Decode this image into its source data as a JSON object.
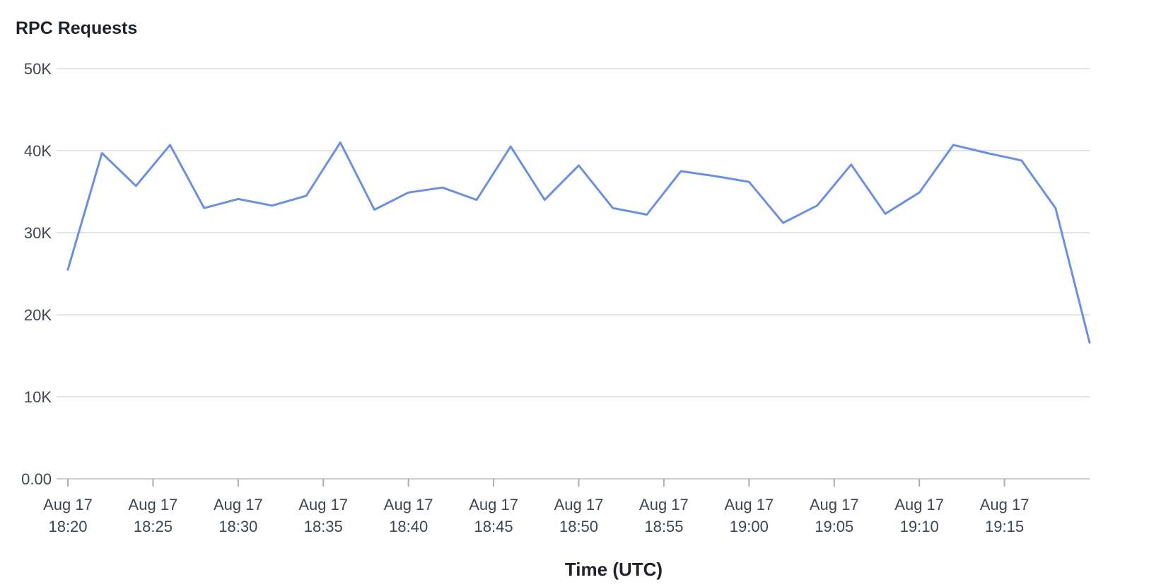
{
  "chart_data": {
    "type": "line",
    "title": "RPC Requests",
    "xlabel": "Time (UTC)",
    "ylabel": "",
    "ylim": [
      0,
      50000
    ],
    "yticks": [
      {
        "value": 0,
        "label": "0.00"
      },
      {
        "value": 10000,
        "label": "10K"
      },
      {
        "value": 20000,
        "label": "20K"
      },
      {
        "value": 30000,
        "label": "30K"
      },
      {
        "value": 40000,
        "label": "40K"
      },
      {
        "value": 50000,
        "label": "50K"
      }
    ],
    "xlim": [
      "Aug 17 18:20",
      "Aug 17 19:20"
    ],
    "xticks": [
      {
        "value": "Aug 17 18:20",
        "line1": "Aug 17",
        "line2": "18:20"
      },
      {
        "value": "Aug 17 18:25",
        "line1": "Aug 17",
        "line2": "18:25"
      },
      {
        "value": "Aug 17 18:30",
        "line1": "Aug 17",
        "line2": "18:30"
      },
      {
        "value": "Aug 17 18:35",
        "line1": "Aug 17",
        "line2": "18:35"
      },
      {
        "value": "Aug 17 18:40",
        "line1": "Aug 17",
        "line2": "18:40"
      },
      {
        "value": "Aug 17 18:45",
        "line1": "Aug 17",
        "line2": "18:45"
      },
      {
        "value": "Aug 17 18:50",
        "line1": "Aug 17",
        "line2": "18:50"
      },
      {
        "value": "Aug 17 18:55",
        "line1": "Aug 17",
        "line2": "18:55"
      },
      {
        "value": "Aug 17 19:00",
        "line1": "Aug 17",
        "line2": "19:00"
      },
      {
        "value": "Aug 17 19:05",
        "line1": "Aug 17",
        "line2": "19:05"
      },
      {
        "value": "Aug 17 19:10",
        "line1": "Aug 17",
        "line2": "19:10"
      },
      {
        "value": "Aug 17 19:15",
        "line1": "Aug 17",
        "line2": "19:15"
      }
    ],
    "grid": true,
    "legend": "none",
    "series": [
      {
        "color": "#6b8fe3",
        "x": [
          "Aug 17 18:20",
          "Aug 17 18:22",
          "Aug 17 18:24",
          "Aug 17 18:26",
          "Aug 17 18:28",
          "Aug 17 18:30",
          "Aug 17 18:32",
          "Aug 17 18:34",
          "Aug 17 18:36",
          "Aug 17 18:38",
          "Aug 17 18:40",
          "Aug 17 18:42",
          "Aug 17 18:44",
          "Aug 17 18:46",
          "Aug 17 18:48",
          "Aug 17 18:50",
          "Aug 17 18:52",
          "Aug 17 18:54",
          "Aug 17 18:56",
          "Aug 17 18:58",
          "Aug 17 19:00",
          "Aug 17 19:02",
          "Aug 17 19:04",
          "Aug 17 19:06",
          "Aug 17 19:08",
          "Aug 17 19:10",
          "Aug 17 19:12",
          "Aug 17 19:14",
          "Aug 17 19:16",
          "Aug 17 19:18",
          "Aug 17 19:20"
        ],
        "values": [
          25500,
          39700,
          35700,
          40700,
          33000,
          34100,
          33300,
          34500,
          41000,
          32800,
          34900,
          35500,
          34000,
          40500,
          34000,
          38200,
          33000,
          32200,
          37500,
          36900,
          36200,
          31200,
          33300,
          38300,
          32300,
          34900,
          40700,
          39700,
          38800,
          33000,
          16600
        ]
      }
    ]
  }
}
